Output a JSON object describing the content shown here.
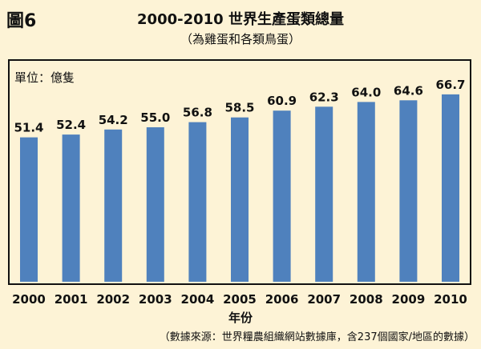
{
  "figure_label": "圖6",
  "chart_data": {
    "type": "bar",
    "title": "2000-2010 世界生產蛋類總量",
    "subtitle": "（為雞蛋和各類鳥蛋）",
    "unit_label": "單位：億隻",
    "xlabel": "年份",
    "ylabel": "",
    "categories": [
      "2000",
      "2001",
      "2002",
      "2003",
      "2004",
      "2005",
      "2006",
      "2007",
      "2008",
      "2009",
      "2010"
    ],
    "values": [
      51.4,
      52.4,
      54.2,
      55.0,
      56.8,
      58.5,
      60.9,
      62.3,
      64.0,
      64.6,
      66.7
    ],
    "value_labels": [
      "51.4",
      "52.4",
      "54.2",
      "55.0",
      "56.8",
      "58.5",
      "60.9",
      "62.3",
      "64.0",
      "64.6",
      "66.7"
    ],
    "bar_color": "#4f81bd",
    "grid": false,
    "legend": "none"
  },
  "source_note": "（數據來源：世界糧農組織網站數據庫，含237個國家/地區的數據）"
}
